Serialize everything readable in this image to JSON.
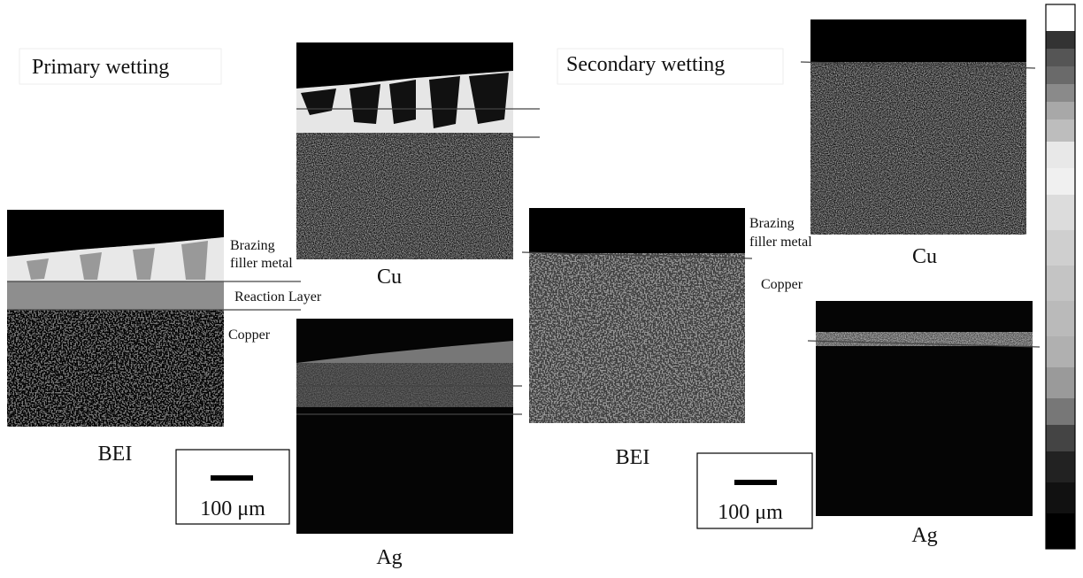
{
  "primary": {
    "title": "Primary wetting",
    "bei_label": "BEI",
    "cu_label": "Cu",
    "ag_label": "Ag",
    "scale_bar": "100 μm",
    "annotations": {
      "brazing": [
        "Brazing",
        "filler metal"
      ],
      "reaction_layer": "Reaction Layer",
      "copper": "Copper"
    }
  },
  "secondary": {
    "title": "Secondary wetting",
    "bei_label": "BEI",
    "cu_label": "Cu",
    "ag_label": "Ag",
    "scale_bar": "100 μm",
    "annotations": {
      "brazing": [
        "Brazing",
        "filler metal"
      ],
      "copper": "Copper"
    }
  }
}
